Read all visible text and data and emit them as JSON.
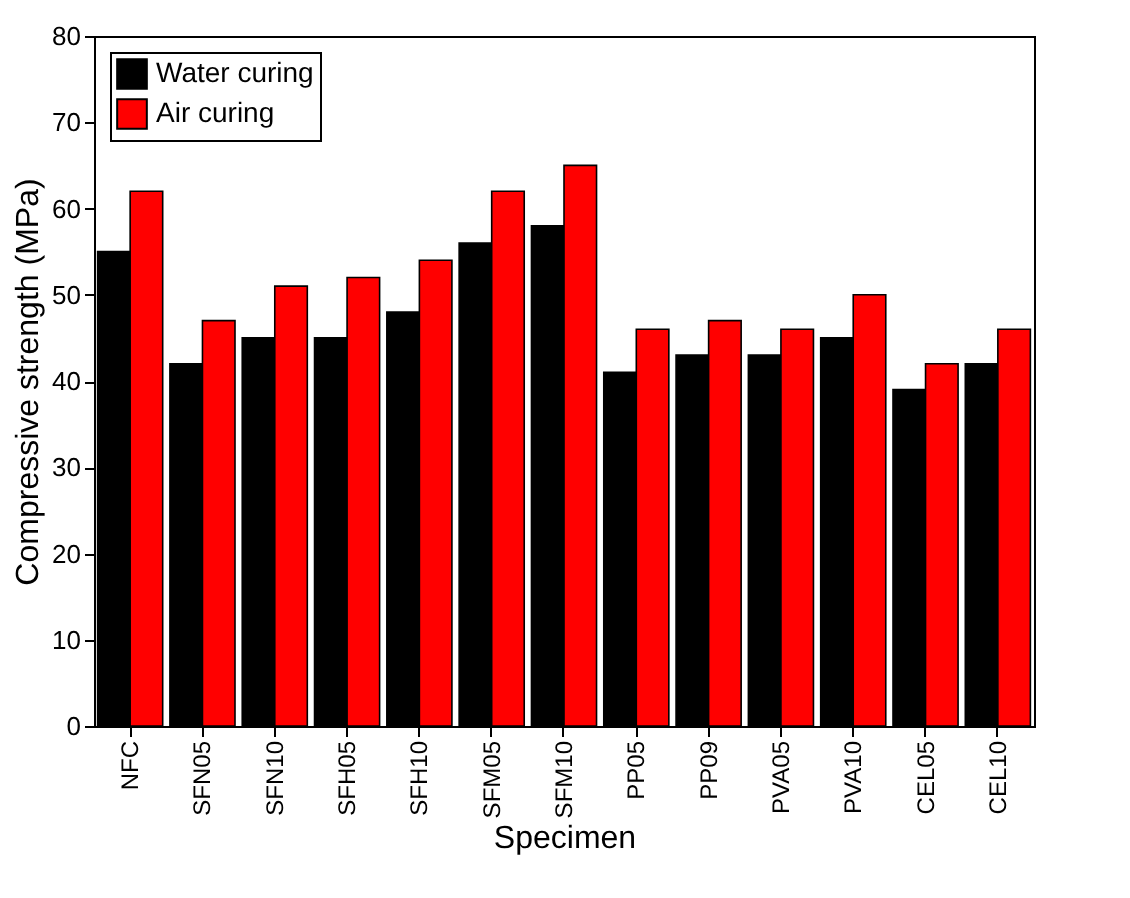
{
  "chart_data": {
    "type": "bar",
    "xlabel": "Specimen",
    "ylabel": "Compressive strength (MPa)",
    "categories": [
      "NFC",
      "SFN05",
      "SFN10",
      "SFH05",
      "SFH10",
      "SFM05",
      "SFM10",
      "PP05",
      "PP09",
      "PVA05",
      "PVA10",
      "CEL05",
      "CEL10"
    ],
    "series": [
      {
        "name": "Water curing",
        "color": "#000000",
        "values": [
          55,
          42,
          45,
          45,
          48,
          56,
          58,
          41,
          43,
          43,
          45,
          39,
          42
        ]
      },
      {
        "name": "Air curing",
        "color": "#ff0000",
        "values": [
          62,
          47,
          51,
          52,
          54,
          62,
          65,
          46,
          47,
          46,
          50,
          42,
          46
        ]
      }
    ],
    "ylim": [
      0,
      80
    ],
    "yticks": [
      0,
      10,
      20,
      30,
      40,
      50,
      60,
      70,
      80
    ],
    "grid": false,
    "legend": "top left"
  }
}
